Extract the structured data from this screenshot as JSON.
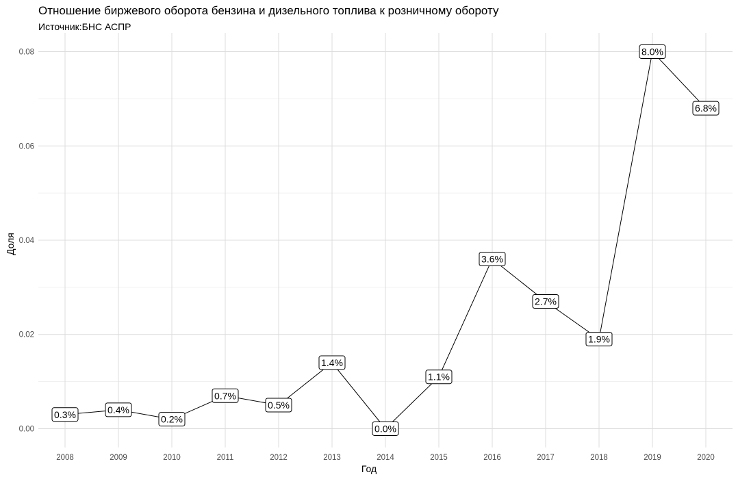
{
  "chart_data": {
    "type": "line",
    "title": "Отношение биржевого оборота бензина и дизельного топлива к розничному обороту",
    "subtitle": "Источник:БНС АСПР",
    "xlabel": "Год",
    "ylabel": "Доля",
    "categories": [
      "2008",
      "2009",
      "2010",
      "2011",
      "2012",
      "2013",
      "2014",
      "2015",
      "2016",
      "2017",
      "2018",
      "2019",
      "2020"
    ],
    "values": [
      0.003,
      0.004,
      0.002,
      0.007,
      0.005,
      0.014,
      0.0,
      0.011,
      0.036,
      0.027,
      0.019,
      0.08,
      0.068
    ],
    "data_labels": [
      "0.3%",
      "0.4%",
      "0.2%",
      "0.7%",
      "0.5%",
      "1.4%",
      "0.0%",
      "1.1%",
      "3.6%",
      "2.7%",
      "1.9%",
      "8.0%",
      "6.8%"
    ],
    "yticks": [
      "0.00",
      "0.02",
      "0.04",
      "0.06",
      "0.08"
    ],
    "ylim": [
      -0.004,
      0.084
    ],
    "grid": true,
    "legend": "none",
    "colors": {
      "line": "#000000",
      "grid_major": "#dcdcdc",
      "grid_minor": "#ececec",
      "tick_text": "#4d4d4d"
    }
  }
}
